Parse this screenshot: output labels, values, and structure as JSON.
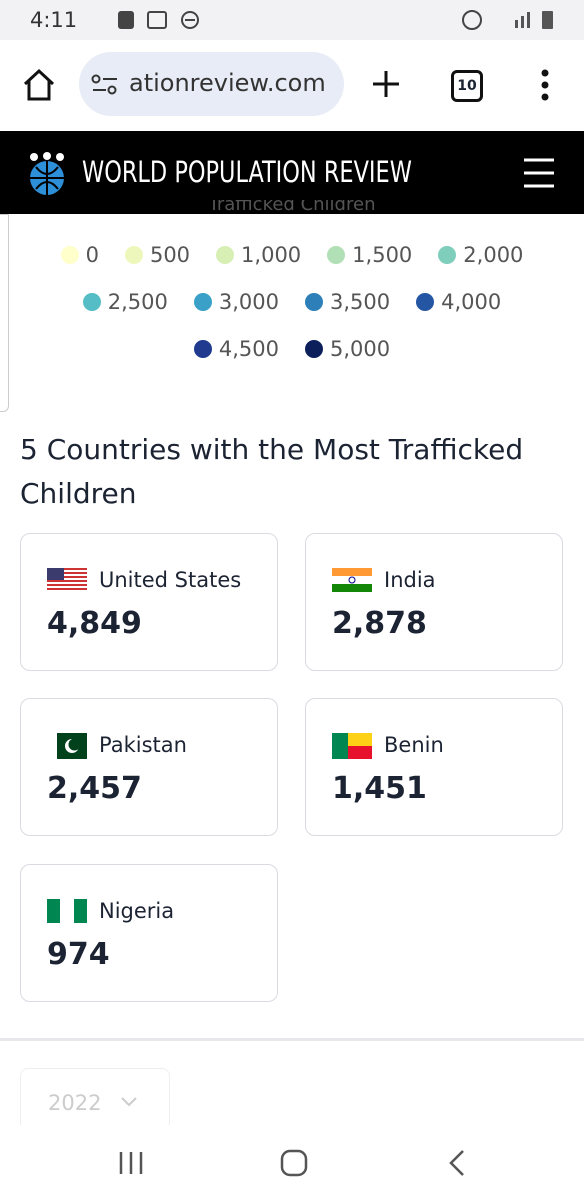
{
  "status_bar": {
    "time": "4:11"
  },
  "browser": {
    "url": "ationreview.com",
    "tab_count": "10"
  },
  "site": {
    "title": "WORLD POPULATION REVIEW"
  },
  "legend": {
    "title": "Trafficked Children",
    "items": [
      {
        "label": "0",
        "color": "#ffffcc"
      },
      {
        "label": "500",
        "color": "#eef7bb"
      },
      {
        "label": "1,000",
        "color": "#d7efb4"
      },
      {
        "label": "1,500",
        "color": "#b2e0b6"
      },
      {
        "label": "2,000",
        "color": "#7fcdbb"
      },
      {
        "label": "2,500",
        "color": "#55bdc5"
      },
      {
        "label": "3,000",
        "color": "#3aa0c8"
      },
      {
        "label": "3,500",
        "color": "#2c7fb8"
      },
      {
        "label": "4,000",
        "color": "#2556a3"
      },
      {
        "label": "4,500",
        "color": "#1f3a8f"
      },
      {
        "label": "5,000",
        "color": "#0c1f5a"
      }
    ]
  },
  "section": {
    "heading": "5 Countries with the Most Trafficked Children",
    "cards": [
      {
        "country": "United States",
        "value": "4,849"
      },
      {
        "country": "India",
        "value": "2,878"
      },
      {
        "country": "Pakistan",
        "value": "2,457"
      },
      {
        "country": "Benin",
        "value": "1,451"
      },
      {
        "country": "Nigeria",
        "value": "974"
      }
    ]
  },
  "year_select": {
    "value": "2022"
  }
}
